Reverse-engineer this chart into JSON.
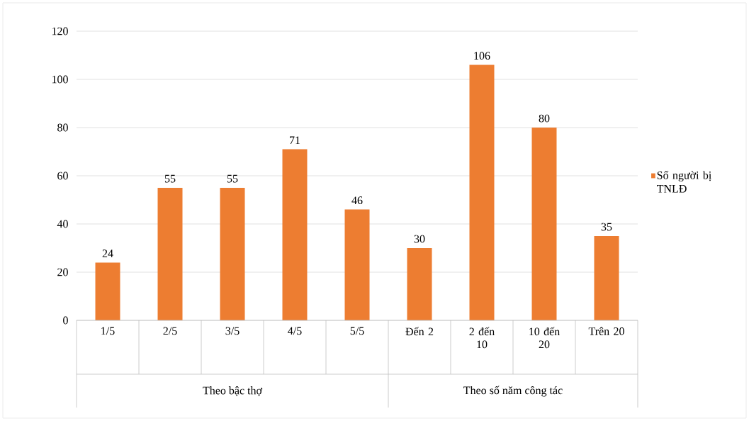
{
  "chart_data": {
    "type": "bar",
    "categories": [
      "1/5",
      "2/5",
      "3/5",
      "4/5",
      "5/5",
      "Đến 2",
      "2 đến 10",
      "10 đến 20",
      "Trên 20"
    ],
    "series": [
      {
        "name": "Số người bị TNLĐ",
        "color": "#ed7d31",
        "values": [
          24,
          55,
          55,
          71,
          46,
          30,
          106,
          80,
          35
        ]
      }
    ],
    "ylim": [
      0,
      120
    ],
    "yticks": [
      0,
      20,
      40,
      60,
      80,
      100,
      120
    ],
    "grid": "y",
    "legend": "right",
    "data_labels": true,
    "annotations": [
      "Theo bậc thợ",
      "Theo số năm công tác"
    ]
  }
}
